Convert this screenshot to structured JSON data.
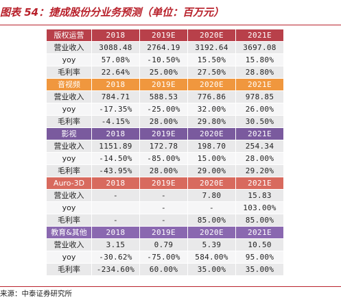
{
  "title": "图表 54：捷成股份分业务预测（单位：百万元）",
  "years": [
    "2018",
    "2019E",
    "2020E",
    "2021E"
  ],
  "colors": {
    "title": "#b8202a",
    "block_1": "#b8404a",
    "block_2": "#f0973e",
    "block_3": "#7a5a9e",
    "block_4": "#d86a5e",
    "block_5": "#8a68b0"
  },
  "blocks": [
    {
      "name": "版权运营",
      "rows": [
        {
          "label": "营业收入",
          "values": [
            "3088.48",
            "2764.19",
            "3192.64",
            "3697.08"
          ]
        },
        {
          "label": "yoy",
          "values": [
            "57.08%",
            "-10.50%",
            "15.50%",
            "15.80%"
          ]
        },
        {
          "label": "毛利率",
          "values": [
            "22.64%",
            "25.00%",
            "27.50%",
            "28.80%"
          ]
        }
      ]
    },
    {
      "name": "音视频",
      "rows": [
        {
          "label": "营业收入",
          "values": [
            "784.71",
            "588.53",
            "776.86",
            "978.85"
          ]
        },
        {
          "label": "yoy",
          "values": [
            "-17.35%",
            "-25.00%",
            "32.00%",
            "26.00%"
          ]
        },
        {
          "label": "毛利率",
          "values": [
            "-4.15%",
            "28.00%",
            "29.80%",
            "30.50%"
          ]
        }
      ]
    },
    {
      "name": "影视",
      "rows": [
        {
          "label": "营业收入",
          "values": [
            "1151.89",
            "172.78",
            "198.70",
            "254.34"
          ]
        },
        {
          "label": "yoy",
          "values": [
            "-14.50%",
            "-85.00%",
            "15.00%",
            "28.00%"
          ]
        },
        {
          "label": "毛利率",
          "values": [
            "-43.95%",
            "28.00%",
            "29.00%",
            "29.20%"
          ]
        }
      ]
    },
    {
      "name": "Auro-3D",
      "rows": [
        {
          "label": "营业收入",
          "values": [
            "-",
            "-",
            "7.80",
            "15.83"
          ]
        },
        {
          "label": "yoy",
          "values": [
            "",
            "-",
            "-",
            "103.00%"
          ]
        },
        {
          "label": "毛利率",
          "values": [
            "-",
            "-",
            "85.00%",
            "85.00%"
          ]
        }
      ]
    },
    {
      "name": "教育&其他",
      "rows": [
        {
          "label": "营业收入",
          "values": [
            "3.15",
            "0.79",
            "5.39",
            "10.50"
          ]
        },
        {
          "label": "yoy",
          "values": [
            "-30.62%",
            "-75.00%",
            "584.00%",
            "95.00%"
          ]
        },
        {
          "label": "毛利率",
          "values": [
            "-234.60%",
            "60.00%",
            "35.00%",
            "35.00%"
          ]
        }
      ]
    }
  ],
  "source": "来源：中泰证券研究所"
}
